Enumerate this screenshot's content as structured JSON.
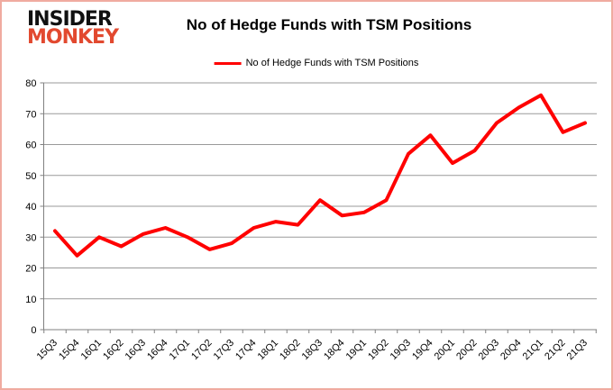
{
  "header": {
    "logo": {
      "line1": "INSIDER",
      "line2": "MONKEY"
    },
    "title": "No of Hedge Funds with TSM Positions"
  },
  "legend": {
    "label": "No of Hedge Funds with TSM Positions"
  },
  "colors": {
    "line": "#ff0000",
    "grid": "#9a9a9a",
    "axis": "#808080",
    "text": "#000000",
    "logo_black": "#111111",
    "logo_red": "#e2492f",
    "border": "#f0aba0",
    "background": "#ffffff"
  },
  "chart_data": {
    "type": "line",
    "title": "No of Hedge Funds with TSM Positions",
    "categories": [
      "15Q3",
      "15Q4",
      "16Q1",
      "16Q2",
      "16Q3",
      "16Q4",
      "17Q1",
      "17Q2",
      "17Q3",
      "17Q4",
      "18Q1",
      "18Q2",
      "18Q3",
      "18Q4",
      "19Q1",
      "19Q2",
      "19Q3",
      "19Q4",
      "20Q1",
      "20Q2",
      "20Q3",
      "20Q4",
      "21Q1",
      "21Q2",
      "21Q3"
    ],
    "series": [
      {
        "name": "No of Hedge Funds with TSM Positions",
        "color": "#ff0000",
        "values": [
          32,
          24,
          30,
          27,
          31,
          33,
          30,
          26,
          28,
          33,
          35,
          34,
          42,
          37,
          38,
          42,
          57,
          63,
          54,
          58,
          67,
          72,
          76,
          64,
          67
        ]
      }
    ],
    "xlabel": "",
    "ylabel": "",
    "ylim": [
      0,
      80
    ],
    "ytick_step": 10,
    "grid": true,
    "legend_position": "top"
  }
}
